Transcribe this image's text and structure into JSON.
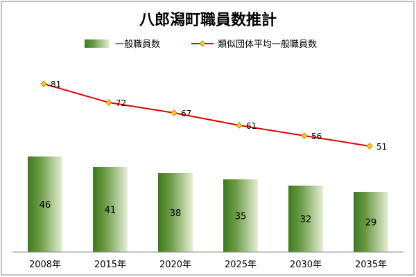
{
  "chart_data": {
    "type": "bar",
    "title": "八郎潟町職員数推計",
    "categories": [
      "2008年",
      "2015年",
      "2020年",
      "2025年",
      "2030年",
      "2035年"
    ],
    "series": [
      {
        "name": "一般職員数",
        "type": "bar",
        "values": [
          46,
          41,
          38,
          35,
          32,
          29
        ]
      },
      {
        "name": "類似団体平均一般職員数",
        "type": "line",
        "values": [
          81,
          72,
          67,
          61,
          56,
          51
        ]
      }
    ],
    "xlabel": "",
    "ylabel": "",
    "legend": "top",
    "grid": false,
    "colors": {
      "bar_dark": "#3f7a1f",
      "bar_light": "#e6efd6",
      "line": "#e00000",
      "marker_fill": "#ffd21a",
      "marker_stroke": "#b08a00",
      "border": "#808080"
    }
  }
}
